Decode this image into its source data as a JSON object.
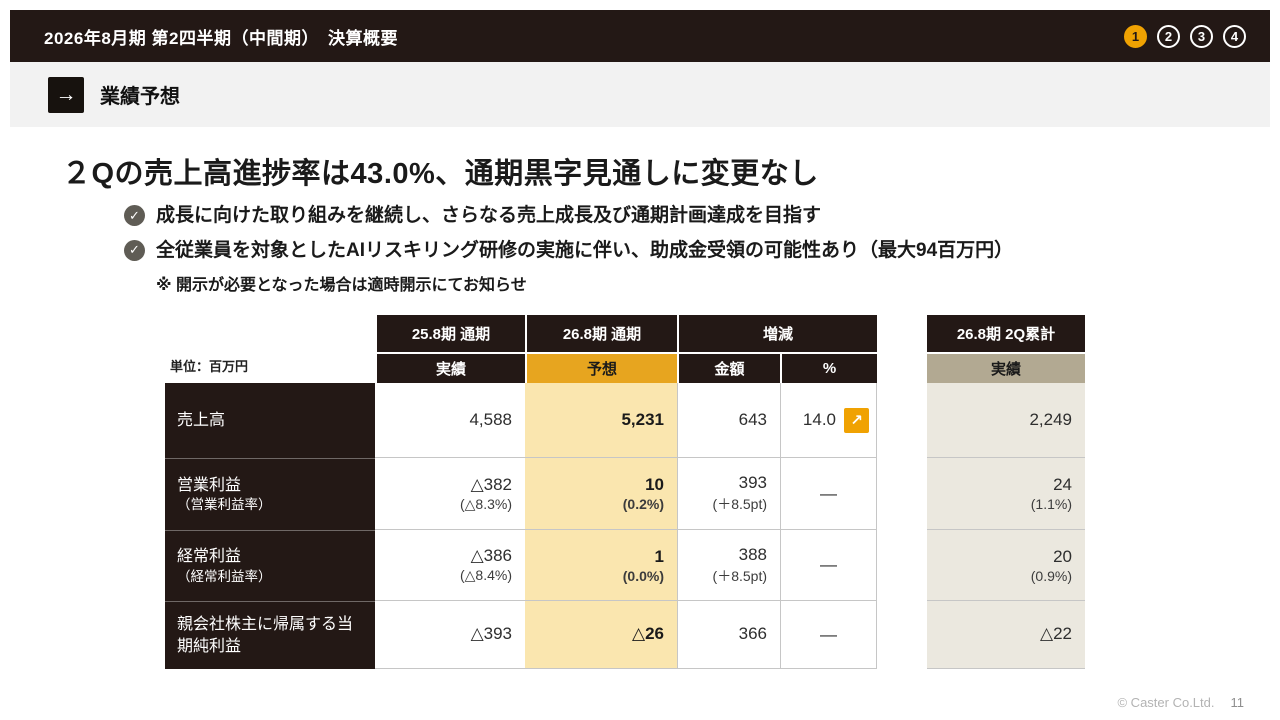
{
  "top_bar": {
    "title": "2026年8月期 第2四半期（中間期）　決算概要",
    "pagination": [
      {
        "label": "1",
        "active": true
      },
      {
        "label": "2",
        "active": false
      },
      {
        "label": "3",
        "active": false
      },
      {
        "label": "4",
        "active": false
      }
    ]
  },
  "section_header": {
    "label": "業績予想"
  },
  "icons": {
    "section_arrow": "→",
    "check": "✓",
    "increase_arrow": "↗"
  },
  "content": {
    "headline": "２Qの売上高進捗率は43.0%、通期黒字見通しに変更なし",
    "bullets": [
      "成長に向けた取り組みを継続し、さらなる売上成長及び通期計画達成を目指す",
      "全従業員を対象としたAIリスキリング研修の実施に伴い、助成金受領の可能性あり（最大94百万円）"
    ],
    "note": "※ 開示が必要となった場合は適時開示にてお知らせ"
  },
  "table": {
    "unit_label": "単位：百万円",
    "headers": {
      "prior_full_year": "25.8期 通期",
      "current_full_year": "26.8期 通期",
      "change": "増減",
      "actual": "実績",
      "forecast": "予想",
      "amount": "金額",
      "percent": "%"
    },
    "rows": [
      {
        "label": "売上高",
        "label_sub": "",
        "actual": "4,588",
        "actual_sub": "",
        "forecast": "5,231",
        "forecast_sub": "",
        "amount": "643",
        "amount_sub": "",
        "pct": "14.0"
      },
      {
        "label": "営業利益",
        "label_sub": "（営業利益率）",
        "actual": "△382",
        "actual_sub": "(△8.3%)",
        "forecast": "10",
        "forecast_sub": "(0.2%)",
        "amount": "393",
        "amount_sub": "(＋8.5pt)",
        "pct": "—"
      },
      {
        "label": "経常利益",
        "label_sub": "（経常利益率）",
        "actual": "△386",
        "actual_sub": "(△8.4%)",
        "forecast": "1",
        "forecast_sub": "(0.0%)",
        "amount": "388",
        "amount_sub": "(＋8.5pt)",
        "pct": "—"
      },
      {
        "label": "親会社株主に帰属する当期純利益",
        "label_sub": "",
        "actual": "△393",
        "actual_sub": "",
        "forecast": "△26",
        "forecast_sub": "",
        "amount": "366",
        "amount_sub": "",
        "pct": "—"
      }
    ]
  },
  "q2_table": {
    "header": "26.8期 2Q累計",
    "sub_header": "実績",
    "rows": [
      {
        "value": "2,249",
        "sub": ""
      },
      {
        "value": "24",
        "sub": "(1.1%)"
      },
      {
        "value": "20",
        "sub": "(0.9%)"
      },
      {
        "value": "△22",
        "sub": ""
      }
    ]
  },
  "footer": {
    "copyright": "© Caster Co.Ltd.",
    "page_number": "11"
  },
  "colors": {
    "dark_brown": "#231815",
    "accent_orange": "#F0A202",
    "forecast_header": "#E7A51F",
    "forecast_cell": "#FAE6AF",
    "q2_header_beige": "#B2A992",
    "q2_cell_beige": "#EBE8DF",
    "band_gray": "#F2F2F2"
  }
}
